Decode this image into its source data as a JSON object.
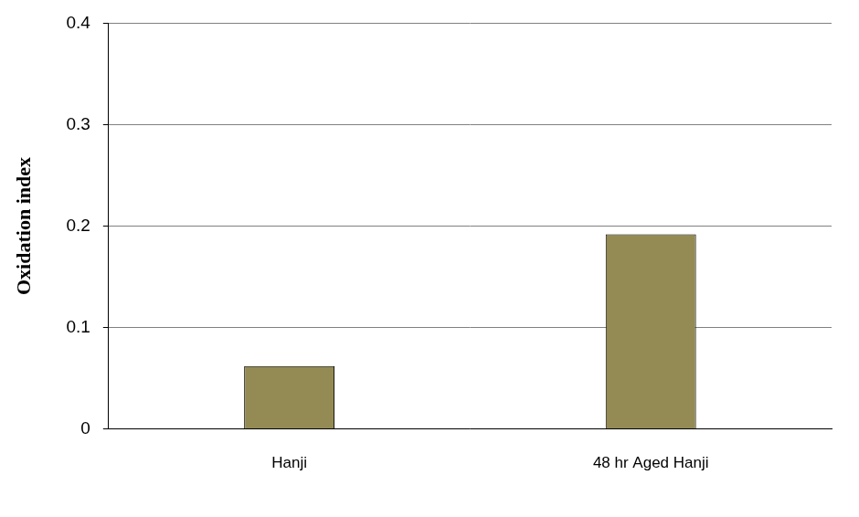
{
  "chart_data": {
    "type": "bar",
    "y_label": "Oxidation index",
    "categories": [
      "Hanji",
      "48 hr Aged Hanji"
    ],
    "values": [
      0.062,
      0.192
    ],
    "color": "#948b54",
    "ylim": [
      0,
      0.4
    ],
    "yticks": [
      0,
      0.1,
      0.2,
      0.3,
      0.4
    ],
    "grid": true
  }
}
